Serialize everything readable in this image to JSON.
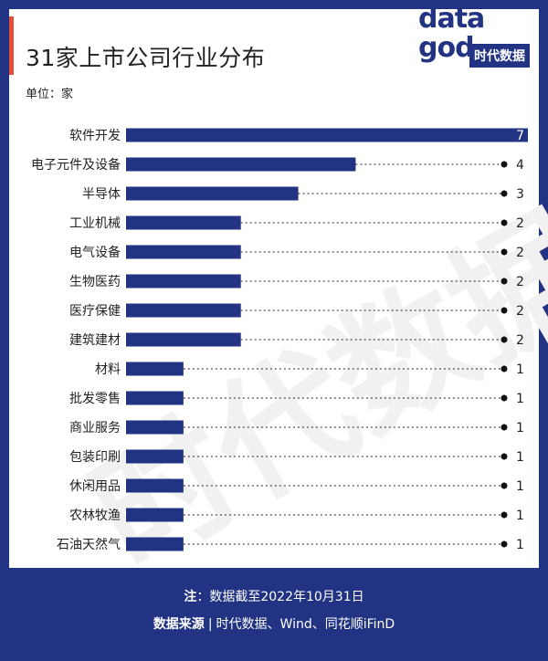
{
  "header": {
    "title": "31家上市公司行业分布",
    "unit": "单位：家"
  },
  "logo": {
    "line1": "data",
    "line2": "god",
    "badge": "时代数据"
  },
  "watermark": "时代数据",
  "footer": {
    "note_label": "注",
    "note_text": "：数据截至2022年10月31日",
    "source_label": "数据来源",
    "source_sep": "|",
    "source_text": "时代数据、Wind、同花顺iFinD"
  },
  "colors": {
    "bar": "#223384",
    "frame": "#223384",
    "accent": "#e84b3a"
  },
  "chart_data": {
    "type": "bar",
    "orientation": "horizontal",
    "categories": [
      "软件开发",
      "电子元件及设备",
      "半导体",
      "工业机械",
      "电气设备",
      "生物医药",
      "医疗保健",
      "建筑建材",
      "材料",
      "批发零售",
      "商业服务",
      "包装印刷",
      "休闲用品",
      "农林牧渔",
      "石油天然气"
    ],
    "values": [
      7,
      4,
      3,
      2,
      2,
      2,
      2,
      2,
      1,
      1,
      1,
      1,
      1,
      1,
      1
    ],
    "xlim": [
      0,
      7
    ],
    "title": "31家上市公司行业分布",
    "unit": "单位：家",
    "grid": false,
    "legend": "none"
  }
}
